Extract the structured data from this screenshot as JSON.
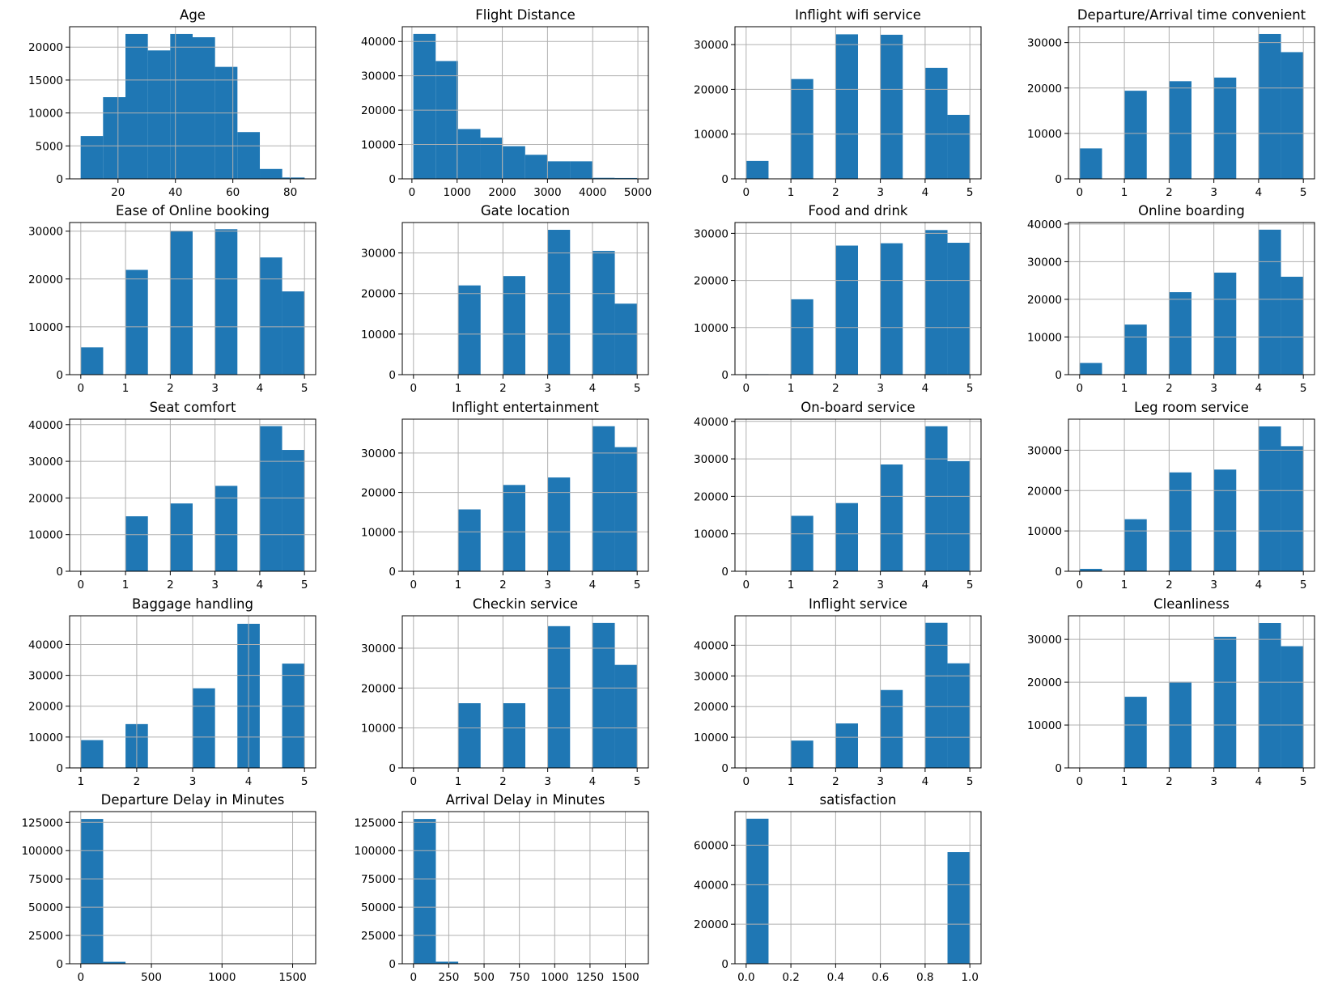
{
  "figure": {
    "bar_color": "#1f77b4",
    "grid_color": "#b0b0b0"
  },
  "chart_data": [
    {
      "type": "bar",
      "title": "Age",
      "xlim": [
        3.15,
        88.85
      ],
      "ylim": [
        0,
        23100
      ],
      "x_ticks": [
        20,
        40,
        60,
        80
      ],
      "y_ticks": [
        0,
        5000,
        10000,
        15000,
        20000
      ],
      "bins": [
        [
          7,
          14.8,
          6500
        ],
        [
          14.8,
          22.6,
          12400
        ],
        [
          22.6,
          30.4,
          22000
        ],
        [
          30.4,
          38.2,
          19500
        ],
        [
          38.2,
          46,
          22000
        ],
        [
          46,
          53.8,
          21500
        ],
        [
          53.8,
          61.6,
          17000
        ],
        [
          61.6,
          69.4,
          7100
        ],
        [
          69.4,
          77.2,
          1500
        ],
        [
          77.2,
          85,
          200
        ]
      ]
    },
    {
      "type": "bar",
      "title": "Flight Distance",
      "xlim": [
        -212.8,
        5231.8
      ],
      "ylim": [
        0,
        44300
      ],
      "x_ticks": [
        0,
        1000,
        2000,
        3000,
        4000,
        5000
      ],
      "y_ticks": [
        0,
        10000,
        20000,
        30000,
        40000
      ],
      "bins": [
        [
          31,
          526,
          42200
        ],
        [
          526,
          1021,
          34300
        ],
        [
          1021,
          1516,
          14500
        ],
        [
          1516,
          2011,
          12000
        ],
        [
          2011,
          2506,
          9500
        ],
        [
          2506,
          3001,
          7000
        ],
        [
          3001,
          3496,
          5100
        ],
        [
          3496,
          3991,
          5100
        ],
        [
          3991,
          4486,
          300
        ],
        [
          4486,
          4983,
          250
        ]
      ]
    },
    {
      "type": "bar",
      "title": "Inflight wifi service",
      "xlim": [
        -0.25,
        5.25
      ],
      "ylim": [
        0,
        34000
      ],
      "x_ticks": [
        0,
        1,
        2,
        3,
        4,
        5
      ],
      "y_ticks": [
        0,
        10000,
        20000,
        30000
      ],
      "bins": [
        [
          0,
          0.5,
          4000
        ],
        [
          1,
          1.5,
          22300
        ],
        [
          2,
          2.5,
          32300
        ],
        [
          3,
          3.5,
          32200
        ],
        [
          4,
          4.5,
          24800
        ],
        [
          4.5,
          5,
          14300
        ]
      ]
    },
    {
      "type": "bar",
      "title": "Departure/Arrival time convenient",
      "xlim": [
        -0.25,
        5.25
      ],
      "ylim": [
        0,
        33500
      ],
      "x_ticks": [
        0,
        1,
        2,
        3,
        4,
        5
      ],
      "y_ticks": [
        0,
        10000,
        20000,
        30000
      ],
      "bins": [
        [
          0,
          0.5,
          6700
        ],
        [
          1,
          1.5,
          19400
        ],
        [
          2,
          2.5,
          21500
        ],
        [
          3,
          3.5,
          22300
        ],
        [
          4,
          4.5,
          31900
        ],
        [
          4.5,
          5,
          27900
        ]
      ]
    },
    {
      "type": "bar",
      "title": "Ease of Online booking",
      "xlim": [
        -0.25,
        5.25
      ],
      "ylim": [
        0,
        31800
      ],
      "x_ticks": [
        0,
        1,
        2,
        3,
        4,
        5
      ],
      "y_ticks": [
        0,
        10000,
        20000,
        30000
      ],
      "bins": [
        [
          0,
          0.5,
          5700
        ],
        [
          1,
          1.5,
          21900
        ],
        [
          2,
          2.5,
          30100
        ],
        [
          3,
          3.5,
          30400
        ],
        [
          4,
          4.5,
          24500
        ],
        [
          4.5,
          5,
          17400
        ]
      ]
    },
    {
      "type": "bar",
      "title": "Gate location",
      "xlim": [
        -0.25,
        5.25
      ],
      "ylim": [
        0,
        37500
      ],
      "x_ticks": [
        0,
        1,
        2,
        3,
        4,
        5
      ],
      "y_ticks": [
        0,
        10000,
        20000,
        30000
      ],
      "bins": [
        [
          0,
          0.5,
          0
        ],
        [
          1,
          1.5,
          22000
        ],
        [
          2,
          2.5,
          24300
        ],
        [
          3,
          3.5,
          35700
        ],
        [
          4,
          4.5,
          30500
        ],
        [
          4.5,
          5,
          17500
        ]
      ]
    },
    {
      "type": "bar",
      "title": "Food and drink",
      "xlim": [
        -0.25,
        5.25
      ],
      "ylim": [
        0,
        32300
      ],
      "x_ticks": [
        0,
        1,
        2,
        3,
        4,
        5
      ],
      "y_ticks": [
        0,
        10000,
        20000,
        30000
      ],
      "bins": [
        [
          0,
          0.5,
          100
        ],
        [
          1,
          1.5,
          16000
        ],
        [
          2,
          2.5,
          27400
        ],
        [
          3,
          3.5,
          27900
        ],
        [
          4,
          4.5,
          30700
        ],
        [
          4.5,
          5,
          28000
        ]
      ]
    },
    {
      "type": "bar",
      "title": "Online boarding",
      "xlim": [
        -0.25,
        5.25
      ],
      "ylim": [
        0,
        40400
      ],
      "x_ticks": [
        0,
        1,
        2,
        3,
        4,
        5
      ],
      "y_ticks": [
        0,
        10000,
        20000,
        30000,
        40000
      ],
      "bins": [
        [
          0,
          0.5,
          3100
        ],
        [
          1,
          1.5,
          13300
        ],
        [
          2,
          2.5,
          21900
        ],
        [
          3,
          3.5,
          27100
        ],
        [
          4,
          4.5,
          38500
        ],
        [
          4.5,
          5,
          26000
        ]
      ]
    },
    {
      "type": "bar",
      "title": "Seat comfort",
      "xlim": [
        -0.25,
        5.25
      ],
      "ylim": [
        0,
        41500
      ],
      "x_ticks": [
        0,
        1,
        2,
        3,
        4,
        5
      ],
      "y_ticks": [
        0,
        10000,
        20000,
        30000,
        40000
      ],
      "bins": [
        [
          0,
          0.5,
          0
        ],
        [
          1,
          1.5,
          15000
        ],
        [
          2,
          2.5,
          18500
        ],
        [
          3,
          3.5,
          23300
        ],
        [
          4,
          4.5,
          39600
        ],
        [
          4.5,
          5,
          33100
        ]
      ]
    },
    {
      "type": "bar",
      "title": "Inflight entertainment",
      "xlim": [
        -0.25,
        5.25
      ],
      "ylim": [
        0,
        38600
      ],
      "x_ticks": [
        0,
        1,
        2,
        3,
        4,
        5
      ],
      "y_ticks": [
        0,
        10000,
        20000,
        30000
      ],
      "bins": [
        [
          0,
          0.5,
          0
        ],
        [
          1,
          1.5,
          15700
        ],
        [
          2,
          2.5,
          21900
        ],
        [
          3,
          3.5,
          23800
        ],
        [
          4,
          4.5,
          36800
        ],
        [
          4.5,
          5,
          31500
        ]
      ]
    },
    {
      "type": "bar",
      "title": "On-board service",
      "xlim": [
        -0.25,
        5.25
      ],
      "ylim": [
        0,
        40600
      ],
      "x_ticks": [
        0,
        1,
        2,
        3,
        4,
        5
      ],
      "y_ticks": [
        0,
        10000,
        20000,
        30000,
        40000
      ],
      "bins": [
        [
          0,
          0.5,
          0
        ],
        [
          1,
          1.5,
          14800
        ],
        [
          2,
          2.5,
          18200
        ],
        [
          3,
          3.5,
          28500
        ],
        [
          4,
          4.5,
          38700
        ],
        [
          4.5,
          5,
          29400
        ]
      ]
    },
    {
      "type": "bar",
      "title": "Leg room service",
      "xlim": [
        -0.25,
        5.25
      ],
      "ylim": [
        0,
        37700
      ],
      "x_ticks": [
        0,
        1,
        2,
        3,
        4,
        5
      ],
      "y_ticks": [
        0,
        10000,
        20000,
        30000
      ],
      "bins": [
        [
          0,
          0.5,
          600
        ],
        [
          1,
          1.5,
          12900
        ],
        [
          2,
          2.5,
          24500
        ],
        [
          3,
          3.5,
          25200
        ],
        [
          4,
          4.5,
          35900
        ],
        [
          4.5,
          5,
          31000
        ]
      ]
    },
    {
      "type": "bar",
      "title": "Baggage handling",
      "xlim": [
        0.8,
        5.2
      ],
      "ylim": [
        0,
        49300
      ],
      "x_ticks": [
        1,
        2,
        3,
        4,
        5
      ],
      "y_ticks": [
        0,
        10000,
        20000,
        30000,
        40000
      ],
      "bins": [
        [
          1,
          1.4,
          9000
        ],
        [
          1.8,
          2.2,
          14200
        ],
        [
          2.6,
          3,
          0
        ],
        [
          3,
          3.4,
          25800
        ],
        [
          3.8,
          4.2,
          46700
        ],
        [
          4.6,
          5,
          33800
        ]
      ]
    },
    {
      "type": "bar",
      "title": "Checkin service",
      "xlim": [
        -0.25,
        5.25
      ],
      "ylim": [
        0,
        38100
      ],
      "x_ticks": [
        0,
        1,
        2,
        3,
        4,
        5
      ],
      "y_ticks": [
        0,
        10000,
        20000,
        30000
      ],
      "bins": [
        [
          0,
          0.5,
          0
        ],
        [
          1,
          1.5,
          16200
        ],
        [
          2,
          2.5,
          16200
        ],
        [
          3,
          3.5,
          35500
        ],
        [
          4,
          4.5,
          36300
        ],
        [
          4.5,
          5,
          25800
        ]
      ]
    },
    {
      "type": "bar",
      "title": "Inflight service",
      "xlim": [
        -0.25,
        5.25
      ],
      "ylim": [
        0,
        49600
      ],
      "x_ticks": [
        0,
        1,
        2,
        3,
        4,
        5
      ],
      "y_ticks": [
        0,
        10000,
        20000,
        30000,
        40000
      ],
      "bins": [
        [
          0,
          0.5,
          0
        ],
        [
          1,
          1.5,
          8900
        ],
        [
          2,
          2.5,
          14500
        ],
        [
          3,
          3.5,
          25400
        ],
        [
          4,
          4.5,
          47300
        ],
        [
          4.5,
          5,
          34100
        ]
      ]
    },
    {
      "type": "bar",
      "title": "Cleanliness",
      "xlim": [
        -0.25,
        5.25
      ],
      "ylim": [
        0,
        35500
      ],
      "x_ticks": [
        0,
        1,
        2,
        3,
        4,
        5
      ],
      "y_ticks": [
        0,
        10000,
        20000,
        30000
      ],
      "bins": [
        [
          0,
          0.5,
          0
        ],
        [
          1,
          1.5,
          16600
        ],
        [
          2,
          2.5,
          20100
        ],
        [
          3,
          3.5,
          30600
        ],
        [
          4,
          4.5,
          33800
        ],
        [
          4.5,
          5,
          28400
        ]
      ]
    },
    {
      "type": "bar",
      "title": "Departure Delay in Minutes",
      "xlim": [
        -79.2,
        1663.2
      ],
      "ylim": [
        0,
        134500
      ],
      "x_ticks": [
        0,
        500,
        1000,
        1500
      ],
      "y_ticks": [
        0,
        25000,
        50000,
        75000,
        100000,
        125000
      ],
      "bins": [
        [
          0,
          158.4,
          128000
        ],
        [
          158.4,
          316.8,
          1700
        ],
        [
          316.8,
          475.2,
          150
        ],
        [
          475.2,
          633.6,
          50
        ]
      ]
    },
    {
      "type": "bar",
      "title": "Arrival Delay in Minutes",
      "xlim": [
        -79.2,
        1663.2
      ],
      "ylim": [
        0,
        134500
      ],
      "x_ticks": [
        0,
        250,
        500,
        750,
        1000,
        1250,
        1500
      ],
      "y_ticks": [
        0,
        25000,
        50000,
        75000,
        100000,
        125000
      ],
      "bins": [
        [
          0,
          158.4,
          128000
        ],
        [
          158.4,
          316.8,
          1800
        ],
        [
          316.8,
          475.2,
          150
        ],
        [
          475.2,
          633.6,
          50
        ]
      ]
    },
    {
      "type": "bar",
      "title": "satisfaction",
      "xlim": [
        -0.05,
        1.05
      ],
      "ylim": [
        0,
        77000
      ],
      "x_ticks": [
        0,
        0.2,
        0.4,
        0.6,
        0.8,
        1
      ],
      "tick_labels_x": [
        "0.0",
        "0.2",
        "0.4",
        "0.6",
        "0.8",
        "1.0"
      ],
      "y_ticks": [
        0,
        20000,
        40000,
        60000
      ],
      "bins": [
        [
          0,
          0.1,
          73400
        ],
        [
          0.9,
          1,
          56500
        ]
      ]
    }
  ]
}
